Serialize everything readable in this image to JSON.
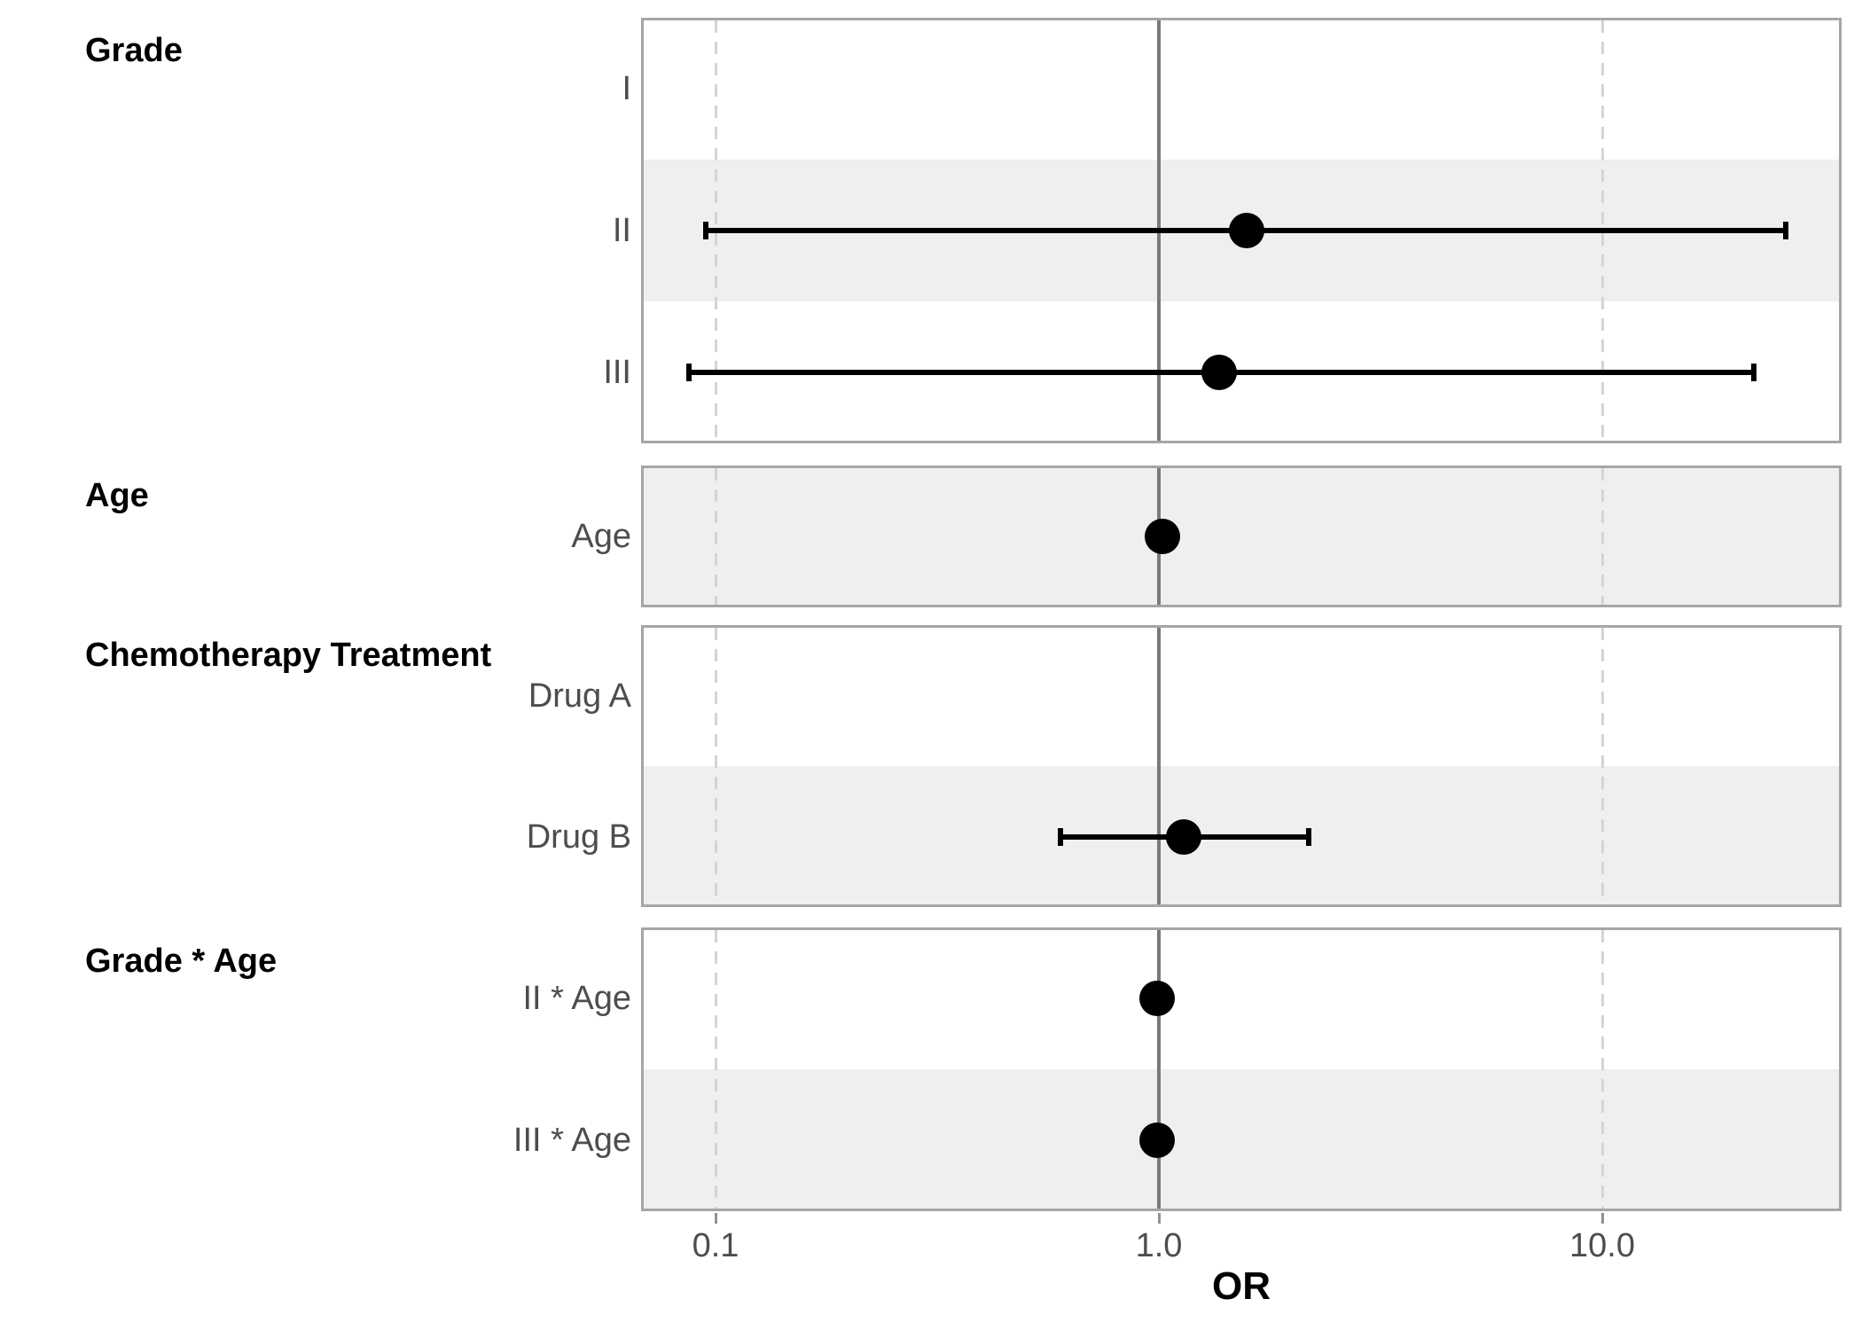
{
  "chart_data": {
    "type": "scatter",
    "variant": "forest-plot",
    "title": "",
    "xlabel": "OR",
    "x_scale": "log10",
    "x_range": [
      0.068,
      35
    ],
    "x_ticks": [
      {
        "value": 0.1,
        "label": "0.1"
      },
      {
        "value": 1.0,
        "label": "1.0"
      },
      {
        "value": 10.0,
        "label": "10.0"
      }
    ],
    "reference_line_x": 1.0,
    "grid_dashed_x": [
      0.1,
      10.0
    ],
    "legend_position": "none",
    "panels": [
      {
        "header": "Grade",
        "rows": [
          {
            "label": "I",
            "or": null,
            "ci_low": null,
            "ci_high": null,
            "striped": false
          },
          {
            "label": "II",
            "or": 1.58,
            "ci_low": 0.095,
            "ci_high": 26.0,
            "striped": true
          },
          {
            "label": "III",
            "or": 1.37,
            "ci_low": 0.087,
            "ci_high": 22.0,
            "striped": false
          }
        ]
      },
      {
        "header": "Age",
        "rows": [
          {
            "label": "Age",
            "or": 1.02,
            "ci_low": null,
            "ci_high": null,
            "striped": true
          }
        ]
      },
      {
        "header": "Chemotherapy Treatment",
        "rows": [
          {
            "label": "Drug A",
            "or": null,
            "ci_low": null,
            "ci_high": null,
            "striped": false
          },
          {
            "label": "Drug B",
            "or": 1.14,
            "ci_low": 0.6,
            "ci_high": 2.18,
            "striped": true
          }
        ]
      },
      {
        "header": "Grade * Age",
        "rows": [
          {
            "label": "II * Age",
            "or": 0.99,
            "ci_low": null,
            "ci_high": null,
            "striped": false
          },
          {
            "label": "III * Age",
            "or": 0.99,
            "ci_low": null,
            "ci_high": null,
            "striped": true
          }
        ]
      }
    ],
    "colors": {
      "marker": "#000000",
      "stripe": "#efefef",
      "panel_border": "#a6a6a6",
      "grid_dashed": "#d4d4d4",
      "reference_line": "#7a7a7a",
      "axis_text": "#4d4d4d",
      "header_text": "#000000"
    }
  }
}
